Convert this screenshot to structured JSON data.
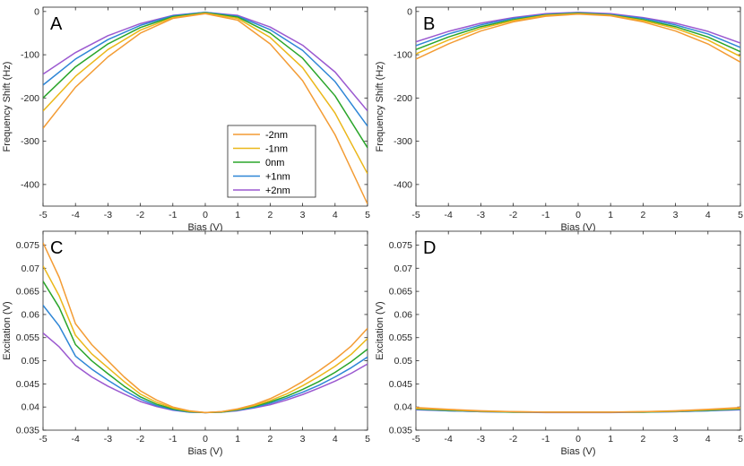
{
  "legend": [
    {
      "label": "-2nm",
      "color": "#F39C34"
    },
    {
      "label": "-1nm",
      "color": "#EBB71A"
    },
    {
      "label": "0nm",
      "color": "#2AA52A"
    },
    {
      "label": "+1nm",
      "color": "#2E86D6"
    },
    {
      "label": "+2nm",
      "color": "#9B59D0"
    }
  ],
  "chart_data": [
    {
      "panel": "A",
      "type": "line",
      "xlabel": "Bias (V)",
      "ylabel": "Frequency Shift (Hz)",
      "xlim": [
        -5,
        5
      ],
      "ylim": [
        -450,
        10
      ],
      "xticks": [
        -5,
        -4,
        -3,
        -2,
        -1,
        0,
        1,
        2,
        3,
        4,
        5
      ],
      "yticks": [
        0,
        -100,
        -200,
        -300,
        -400
      ],
      "x": [
        -5,
        -4,
        -3,
        -2,
        -1,
        0,
        1,
        2,
        3,
        4,
        5
      ],
      "series": [
        {
          "name": "-2nm",
          "values": [
            -270,
            -175,
            -105,
            -50,
            -16,
            -5,
            -20,
            -75,
            -160,
            -285,
            -445
          ]
        },
        {
          "name": "-1nm",
          "values": [
            -230,
            -150,
            -88,
            -43,
            -14,
            -4,
            -16,
            -60,
            -130,
            -235,
            -375
          ]
        },
        {
          "name": "0nm",
          "values": [
            -200,
            -128,
            -75,
            -37,
            -12,
            -3,
            -13,
            -50,
            -108,
            -195,
            -315
          ]
        },
        {
          "name": "+1nm",
          "values": [
            -170,
            -110,
            -65,
            -32,
            -10,
            -2,
            -11,
            -42,
            -90,
            -162,
            -265
          ]
        },
        {
          "name": "+2nm",
          "values": [
            -145,
            -95,
            -56,
            -28,
            -9,
            -2,
            -9,
            -36,
            -78,
            -140,
            -230
          ]
        }
      ]
    },
    {
      "panel": "B",
      "type": "line",
      "xlabel": "Bias (V)",
      "ylabel": "Frequency Shift (Hz)",
      "xlim": [
        -5,
        5
      ],
      "ylim": [
        -450,
        10
      ],
      "xticks": [
        -5,
        -4,
        -3,
        -2,
        -1,
        0,
        1,
        2,
        3,
        4,
        5
      ],
      "yticks": [
        0,
        -100,
        -200,
        -300,
        -400
      ],
      "x": [
        -5,
        -4,
        -3,
        -2,
        -1,
        0,
        1,
        2,
        3,
        4,
        5
      ],
      "series": [
        {
          "name": "-2nm",
          "values": [
            -110,
            -75,
            -45,
            -24,
            -11,
            -6,
            -10,
            -24,
            -45,
            -75,
            -117
          ]
        },
        {
          "name": "-1nm",
          "values": [
            -98,
            -66,
            -39,
            -21,
            -9,
            -5,
            -9,
            -21,
            -39,
            -66,
            -104
          ]
        },
        {
          "name": "0nm",
          "values": [
            -88,
            -59,
            -35,
            -19,
            -8,
            -4,
            -8,
            -19,
            -35,
            -59,
            -93
          ]
        },
        {
          "name": "+1nm",
          "values": [
            -79,
            -52,
            -31,
            -16,
            -7,
            -3,
            -7,
            -16,
            -31,
            -52,
            -83
          ]
        },
        {
          "name": "+2nm",
          "values": [
            -70,
            -46,
            -27,
            -14,
            -5,
            -2,
            -5,
            -14,
            -27,
            -46,
            -73
          ]
        }
      ]
    },
    {
      "panel": "C",
      "type": "line",
      "xlabel": "Bias (V)",
      "ylabel": "Excitation (V)",
      "xlim": [
        -5,
        5
      ],
      "ylim": [
        0.035,
        0.078
      ],
      "xticks": [
        -5,
        -4,
        -3,
        -2,
        -1,
        0,
        1,
        2,
        3,
        4,
        5
      ],
      "yticks": [
        0.035,
        0.04,
        0.045,
        0.05,
        0.055,
        0.06,
        0.065,
        0.07,
        0.075
      ],
      "x": [
        -5,
        -4.5,
        -4,
        -3.5,
        -3,
        -2.5,
        -2,
        -1.5,
        -1,
        -0.5,
        0,
        0.5,
        1,
        1.5,
        2,
        2.5,
        3,
        3.5,
        4,
        4.5,
        5
      ],
      "series": [
        {
          "name": "-2nm",
          "values": [
            0.0755,
            0.068,
            0.058,
            0.0535,
            0.05,
            0.0465,
            0.0435,
            0.0415,
            0.04,
            0.0392,
            0.0388,
            0.039,
            0.0396,
            0.0405,
            0.0418,
            0.0435,
            0.0455,
            0.0478,
            0.0503,
            0.0532,
            0.057
          ]
        },
        {
          "name": "-1nm",
          "values": [
            0.0705,
            0.064,
            0.0555,
            0.0515,
            0.0485,
            0.0455,
            0.0428,
            0.041,
            0.0398,
            0.0391,
            0.0388,
            0.039,
            0.0395,
            0.0403,
            0.0414,
            0.0428,
            0.0446,
            0.0466,
            0.0488,
            0.0514,
            0.0548
          ]
        },
        {
          "name": "0nm",
          "values": [
            0.0672,
            0.0615,
            0.0535,
            0.05,
            0.0472,
            0.0445,
            0.0422,
            0.0406,
            0.0396,
            0.039,
            0.0388,
            0.0389,
            0.0394,
            0.0401,
            0.0411,
            0.0423,
            0.0438,
            0.0455,
            0.0475,
            0.0498,
            0.0525
          ]
        },
        {
          "name": "+1nm",
          "values": [
            0.062,
            0.0575,
            0.051,
            0.0482,
            0.0458,
            0.0436,
            0.0417,
            0.0403,
            0.0394,
            0.0389,
            0.0388,
            0.0389,
            0.0393,
            0.0399,
            0.0408,
            0.0419,
            0.0432,
            0.0447,
            0.0465,
            0.0485,
            0.0508
          ]
        },
        {
          "name": "+2nm",
          "values": [
            0.056,
            0.053,
            0.049,
            0.0465,
            0.0445,
            0.0428,
            0.0412,
            0.0401,
            0.0393,
            0.0389,
            0.0388,
            0.0389,
            0.0392,
            0.0398,
            0.0405,
            0.0415,
            0.0427,
            0.0441,
            0.0456,
            0.0473,
            0.0493
          ]
        }
      ]
    },
    {
      "panel": "D",
      "type": "line",
      "xlabel": "Bias (V)",
      "ylabel": "Excitation (V)",
      "xlim": [
        -5,
        5
      ],
      "ylim": [
        0.035,
        0.078
      ],
      "xticks": [
        -5,
        -4,
        -3,
        -2,
        -1,
        0,
        1,
        2,
        3,
        4,
        5
      ],
      "yticks": [
        0.035,
        0.04,
        0.045,
        0.05,
        0.055,
        0.06,
        0.065,
        0.07,
        0.075
      ],
      "x": [
        -5,
        -4,
        -3,
        -2,
        -1,
        0,
        1,
        2,
        3,
        4,
        5
      ],
      "series": [
        {
          "name": "-2nm",
          "values": [
            0.0399,
            0.0395,
            0.0392,
            0.039,
            0.0389,
            0.0389,
            0.0389,
            0.039,
            0.0392,
            0.0395,
            0.0399
          ]
        },
        {
          "name": "-1nm",
          "values": [
            0.0397,
            0.0394,
            0.0391,
            0.039,
            0.0389,
            0.0389,
            0.0389,
            0.039,
            0.0391,
            0.0394,
            0.0397
          ]
        },
        {
          "name": "0nm",
          "values": [
            0.0396,
            0.0393,
            0.0391,
            0.0389,
            0.0389,
            0.0389,
            0.0389,
            0.0389,
            0.0391,
            0.0393,
            0.0396
          ]
        },
        {
          "name": "+1nm",
          "values": [
            0.0395,
            0.0392,
            0.039,
            0.0389,
            0.0389,
            0.0389,
            0.0389,
            0.0389,
            0.039,
            0.0392,
            0.0395
          ]
        },
        {
          "name": "+2nm",
          "values": [
            0.0394,
            0.0392,
            0.039,
            0.0389,
            0.0388,
            0.0388,
            0.0388,
            0.0389,
            0.039,
            0.0392,
            0.0394
          ]
        }
      ]
    }
  ]
}
